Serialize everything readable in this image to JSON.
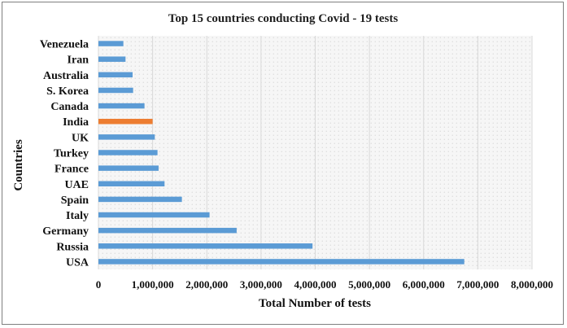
{
  "chart_data": {
    "type": "bar",
    "orientation": "horizontal",
    "title": "Top 15 countries conducting Covid - 19 tests",
    "xlabel": "Total Number of tests",
    "ylabel": "Countries",
    "categories": [
      "Venezuela",
      "Iran",
      "Australia",
      "S. Korea",
      "Canada",
      "India",
      "UK",
      "Turkey",
      "France",
      "UAE",
      "Spain",
      "Italy",
      "Germany",
      "Russia",
      "USA"
    ],
    "values": [
      460000,
      500000,
      630000,
      640000,
      850000,
      1000000,
      1040000,
      1090000,
      1110000,
      1220000,
      1540000,
      2050000,
      2550000,
      3950000,
      6750000
    ],
    "highlight_category": "India",
    "xlim": [
      0,
      8000000
    ],
    "x_ticks": [
      0,
      1000000,
      2000000,
      3000000,
      4000000,
      5000000,
      6000000,
      7000000,
      8000000
    ],
    "x_tick_labels": [
      "0",
      "1,000,000",
      "2,000,000",
      "3,000,000",
      "4,000,000",
      "5,000,000",
      "6,000,000",
      "7,000,000",
      "8,000,000"
    ],
    "grid": "vertical",
    "legend": "none",
    "colors": {
      "bar": "#5b9bd5",
      "highlight": "#ed7d31",
      "gridline": "#d9d9d9",
      "plot_background": "#f4f4f4",
      "plot_dots": "#c8c8c8"
    }
  }
}
